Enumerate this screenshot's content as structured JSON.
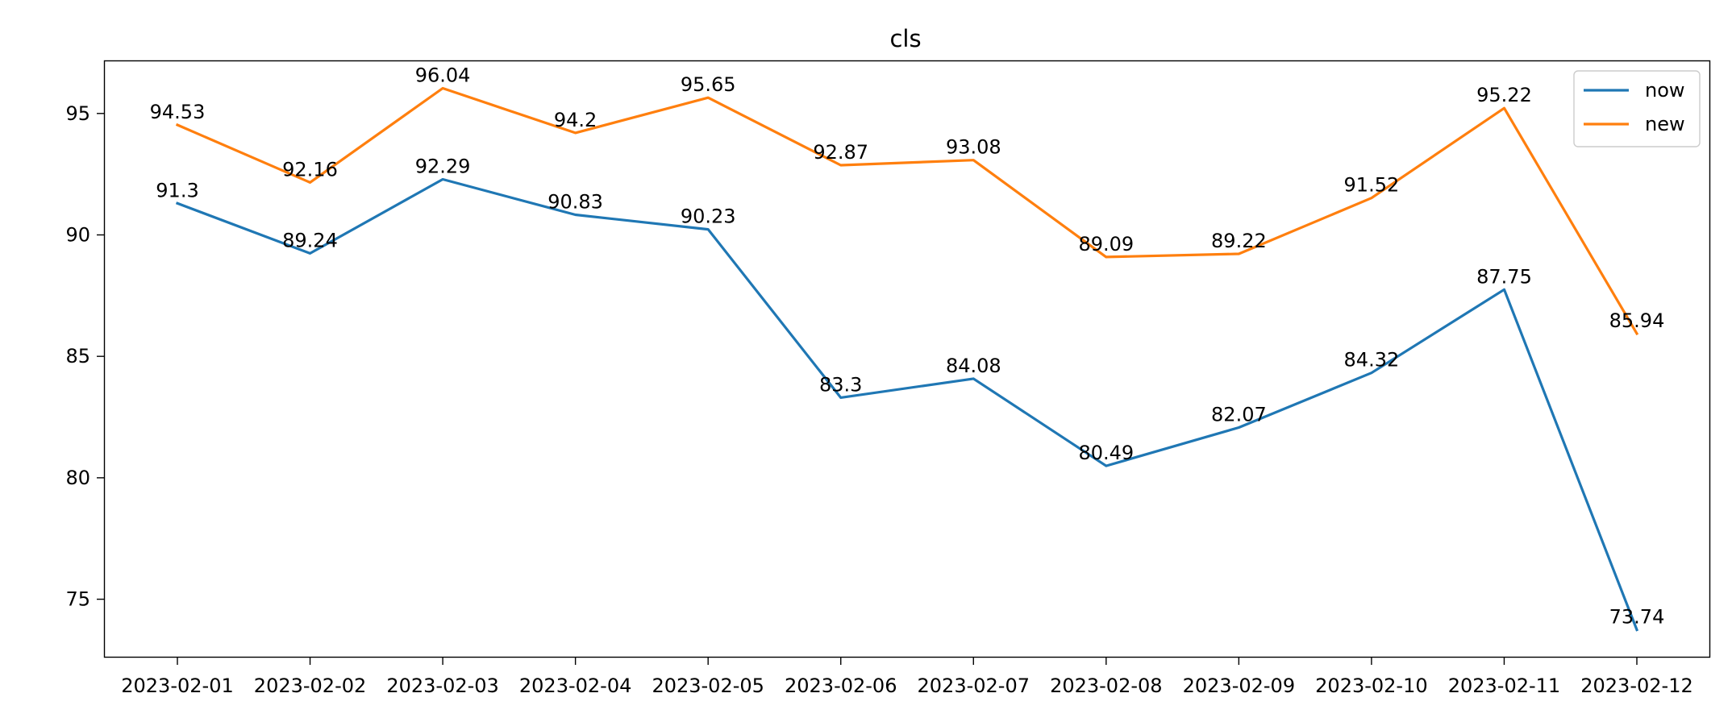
{
  "chart_data": {
    "type": "line",
    "title": "cls",
    "xlabel": "",
    "ylabel": "",
    "categories": [
      "2023-02-01",
      "2023-02-02",
      "2023-02-03",
      "2023-02-04",
      "2023-02-05",
      "2023-02-06",
      "2023-02-07",
      "2023-02-08",
      "2023-02-09",
      "2023-02-10",
      "2023-02-11",
      "2023-02-12"
    ],
    "series": [
      {
        "name": "now",
        "color": "#1f77b4",
        "values": [
          91.3,
          89.24,
          92.29,
          90.83,
          90.23,
          83.3,
          84.08,
          80.49,
          82.07,
          84.32,
          87.75,
          73.74
        ]
      },
      {
        "name": "new",
        "color": "#ff7f0e",
        "values": [
          94.53,
          92.16,
          96.04,
          94.2,
          95.65,
          92.87,
          93.08,
          89.09,
          89.22,
          91.52,
          95.22,
          85.94
        ]
      }
    ],
    "yticks": [
      75,
      80,
      85,
      90,
      95
    ],
    "ylim": [
      72.63,
      97.15
    ],
    "legend": "top-right",
    "grid": false
  }
}
